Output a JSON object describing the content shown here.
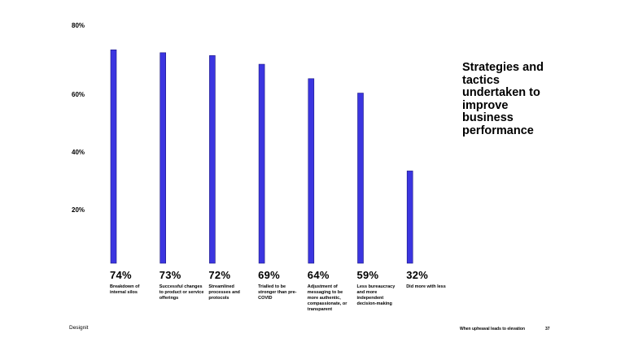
{
  "chart_data": {
    "type": "bar",
    "title": "Strategies and tactics undertaken to improve business performance",
    "categories": [
      "Breakdown of internal silos",
      "Successful changes to product or service offerings",
      "Streamlined processes and protocols",
      "Trialled to be stronger than pre-COVID",
      "Adjustment of messaging to be more authentic, compassionate, or transparent",
      "Less bureaucracy and more independent decision-making",
      "Did more with less"
    ],
    "values": [
      74,
      73,
      72,
      69,
      64,
      59,
      32
    ],
    "value_labels": [
      "74%",
      "73%",
      "72%",
      "69%",
      "64%",
      "59%",
      "32%"
    ],
    "yticks": [
      20,
      40,
      60,
      80
    ],
    "ytick_labels": [
      "20%",
      "40%",
      "60%",
      "80%"
    ],
    "ylim": [
      0,
      80
    ],
    "grid": false,
    "bar_color": "#3b35e0"
  },
  "brand": "Designit",
  "footer": "When upheaval leads to elevation",
  "page_number": "37"
}
